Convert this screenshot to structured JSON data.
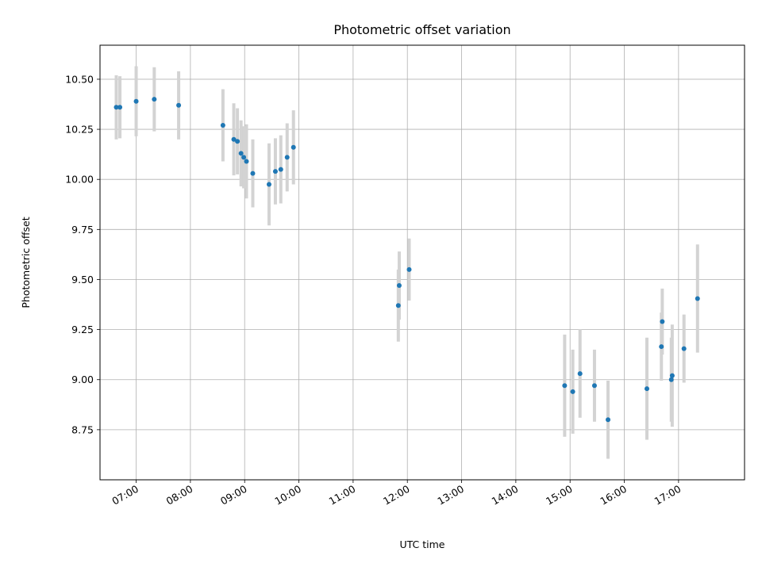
{
  "chart_data": {
    "type": "scatter",
    "title": "Photometric offset variation",
    "xlabel": "UTC time",
    "ylabel": "Photometric offset",
    "x_is_time": true,
    "xlim": [
      "06:20",
      "18:13"
    ],
    "ylim": [
      8.5,
      10.67
    ],
    "grid": true,
    "x_ticks": [
      "07:00",
      "08:00",
      "09:00",
      "10:00",
      "11:00",
      "12:00",
      "13:00",
      "14:00",
      "15:00",
      "16:00",
      "17:00"
    ],
    "y_ticks": [
      "8.75",
      "9.00",
      "9.25",
      "9.50",
      "9.75",
      "10.00",
      "10.25",
      "10.50"
    ],
    "colors": {
      "points": "#1f77b4",
      "errorbars": "#d3d3d3",
      "grid": "#b0b0b0"
    },
    "points": [
      {
        "x": "06:38",
        "y": 10.36,
        "err": 0.16
      },
      {
        "x": "06:42",
        "y": 10.36,
        "err": 0.155
      },
      {
        "x": "07:00",
        "y": 10.39,
        "err": 0.175
      },
      {
        "x": "07:20",
        "y": 10.4,
        "err": 0.16
      },
      {
        "x": "07:47",
        "y": 10.37,
        "err": 0.17
      },
      {
        "x": "08:36",
        "y": 10.27,
        "err": 0.18
      },
      {
        "x": "08:48",
        "y": 10.2,
        "err": 0.18
      },
      {
        "x": "08:52",
        "y": 10.19,
        "err": 0.165
      },
      {
        "x": "08:56",
        "y": 10.13,
        "err": 0.165
      },
      {
        "x": "08:59",
        "y": 10.11,
        "err": 0.155
      },
      {
        "x": "09:02",
        "y": 10.09,
        "err": 0.185
      },
      {
        "x": "09:09",
        "y": 10.03,
        "err": 0.17
      },
      {
        "x": "09:27",
        "y": 9.975,
        "err": 0.205
      },
      {
        "x": "09:34",
        "y": 10.04,
        "err": 0.165
      },
      {
        "x": "09:40",
        "y": 10.05,
        "err": 0.17
      },
      {
        "x": "09:47",
        "y": 10.11,
        "err": 0.17
      },
      {
        "x": "09:54",
        "y": 10.16,
        "err": 0.185
      },
      {
        "x": "11:50",
        "y": 9.37,
        "err": 0.18
      },
      {
        "x": "11:51",
        "y": 9.47,
        "err": 0.17
      },
      {
        "x": "12:02",
        "y": 9.55,
        "err": 0.155
      },
      {
        "x": "14:54",
        "y": 8.97,
        "err": 0.255
      },
      {
        "x": "15:03",
        "y": 8.94,
        "err": 0.21
      },
      {
        "x": "15:11",
        "y": 9.03,
        "err": 0.22
      },
      {
        "x": "15:27",
        "y": 8.97,
        "err": 0.18
      },
      {
        "x": "15:42",
        "y": 8.8,
        "err": 0.195
      },
      {
        "x": "16:25",
        "y": 8.955,
        "err": 0.255
      },
      {
        "x": "16:41",
        "y": 9.165,
        "err": 0.17
      },
      {
        "x": "16:42",
        "y": 9.29,
        "err": 0.165
      },
      {
        "x": "16:52",
        "y": 9.0,
        "err": 0.21
      },
      {
        "x": "16:53",
        "y": 9.02,
        "err": 0.255
      },
      {
        "x": "17:06",
        "y": 9.155,
        "err": 0.17
      },
      {
        "x": "17:21",
        "y": 9.405,
        "err": 0.27
      }
    ]
  }
}
